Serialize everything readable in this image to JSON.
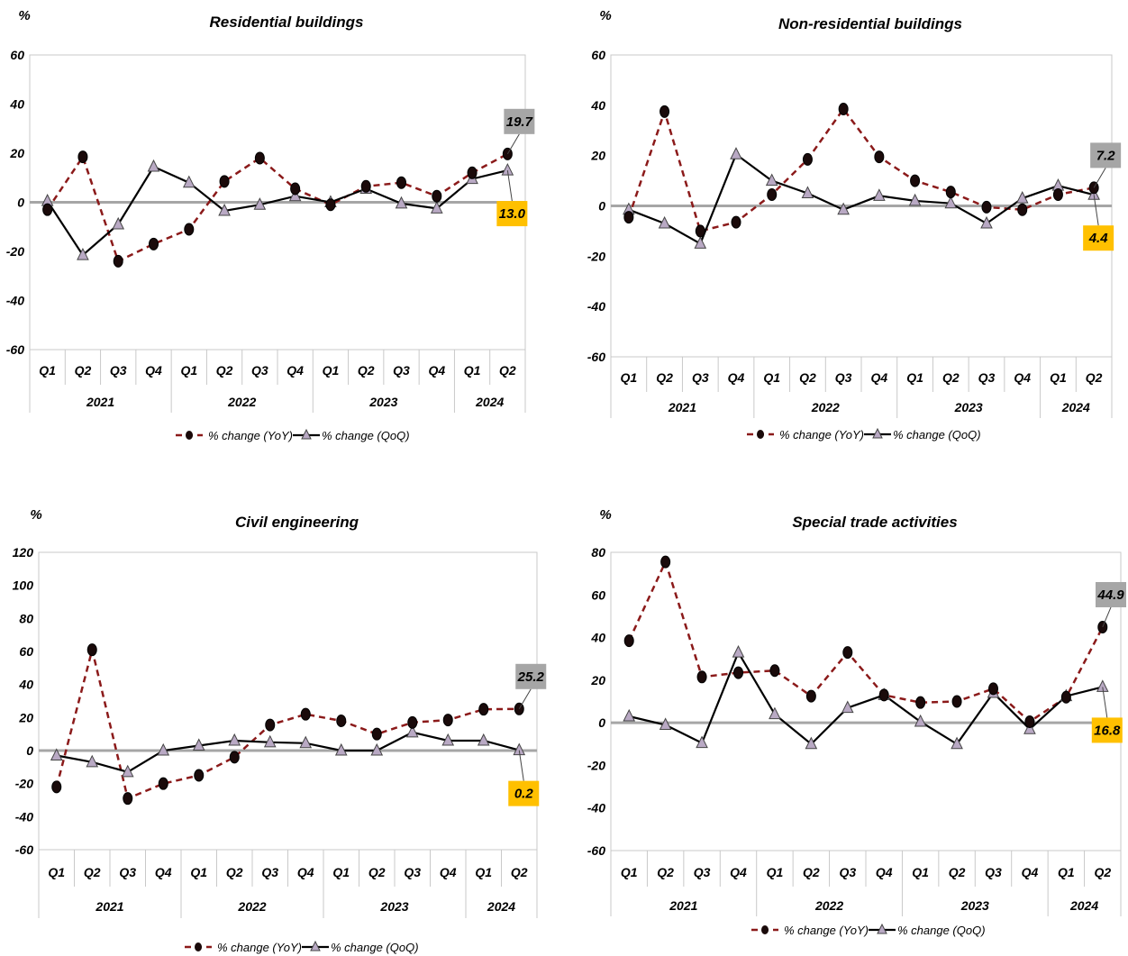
{
  "charts": [
    {
      "unit": "%",
      "chart_data": {
        "type": "line",
        "title": "Residential buildings",
        "ylabel": "%",
        "ylim": [
          -60,
          60
        ],
        "yticks": [
          -60,
          -40,
          -20,
          0,
          20,
          40,
          60
        ],
        "categories": [
          "Q1",
          "Q2",
          "Q3",
          "Q4",
          "Q1",
          "Q2",
          "Q3",
          "Q4",
          "Q1",
          "Q2",
          "Q3",
          "Q4",
          "Q1",
          "Q2"
        ],
        "year_groups": [
          {
            "label": "2021",
            "span": 4
          },
          {
            "label": "2022",
            "span": 4
          },
          {
            "label": "2023",
            "span": 4
          },
          {
            "label": "2024",
            "span": 2
          }
        ],
        "series": [
          {
            "name": "% change (YoY)",
            "style": "dashed",
            "color": "#8B1A1A",
            "marker": "circle",
            "values": [
              -3,
              18.5,
              -24,
              -17,
              -11,
              8.5,
              18,
              5.5,
              -1,
              6.5,
              8,
              2.5,
              12,
              19.7
            ]
          },
          {
            "name": "% change (QoQ)",
            "style": "solid",
            "color": "#000000",
            "marker": "triangle",
            "values": [
              0.5,
              -21.5,
              -9,
              14.5,
              8,
              -3.5,
              -1,
              2.5,
              0,
              5.5,
              -0.5,
              -2.5,
              9.5,
              13.0
            ]
          }
        ],
        "annotations": [
          {
            "text": "19.7",
            "series": 0,
            "index": 13,
            "bg": "#A6A6A6"
          },
          {
            "text": "13.0",
            "series": 1,
            "index": 13,
            "bg": "#FFC000"
          }
        ],
        "legend_position": "bottom-center",
        "grid": false
      }
    },
    {
      "unit": "%",
      "chart_data": {
        "type": "line",
        "title": "Non-residential buildings",
        "ylabel": "%",
        "ylim": [
          -60,
          60
        ],
        "yticks": [
          -60,
          -40,
          -20,
          0,
          20,
          40,
          60
        ],
        "categories": [
          "Q1",
          "Q2",
          "Q3",
          "Q4",
          "Q1",
          "Q2",
          "Q3",
          "Q4",
          "Q1",
          "Q2",
          "Q3",
          "Q4",
          "Q1",
          "Q2"
        ],
        "year_groups": [
          {
            "label": "2021",
            "span": 4
          },
          {
            "label": "2022",
            "span": 4
          },
          {
            "label": "2023",
            "span": 4
          },
          {
            "label": "2024",
            "span": 2
          }
        ],
        "series": [
          {
            "name": "% change (YoY)",
            "style": "dashed",
            "color": "#8B1A1A",
            "marker": "circle",
            "values": [
              -4.5,
              37.5,
              -10,
              -6.5,
              4.5,
              18.5,
              38.5,
              19.5,
              10,
              5.5,
              -0.5,
              -1.5,
              4.5,
              7.2
            ]
          },
          {
            "name": "% change (QoQ)",
            "style": "solid",
            "color": "#000000",
            "marker": "triangle",
            "values": [
              -1.5,
              -7,
              -15,
              20.5,
              10,
              5,
              -1.5,
              4,
              2,
              1,
              -7,
              3,
              8,
              4.4
            ]
          }
        ],
        "annotations": [
          {
            "text": "7.2",
            "series": 0,
            "index": 13,
            "bg": "#A6A6A6"
          },
          {
            "text": "4.4",
            "series": 1,
            "index": 13,
            "bg": "#FFC000"
          }
        ],
        "legend_position": "bottom-center",
        "grid": false
      }
    },
    {
      "unit": "%",
      "chart_data": {
        "type": "line",
        "title": "Civil engineering",
        "ylabel": "%",
        "ylim": [
          -60,
          120
        ],
        "yticks": [
          -60,
          -40,
          -20,
          0,
          20,
          40,
          60,
          80,
          100,
          120
        ],
        "categories": [
          "Q1",
          "Q2",
          "Q3",
          "Q4",
          "Q1",
          "Q2",
          "Q3",
          "Q4",
          "Q1",
          "Q2",
          "Q3",
          "Q4",
          "Q1",
          "Q2"
        ],
        "year_groups": [
          {
            "label": "2021",
            "span": 4
          },
          {
            "label": "2022",
            "span": 4
          },
          {
            "label": "2023",
            "span": 4
          },
          {
            "label": "2024",
            "span": 2
          }
        ],
        "series": [
          {
            "name": "% change (YoY)",
            "style": "dashed",
            "color": "#8B1A1A",
            "marker": "circle",
            "values": [
              -22,
              61,
              -29,
              -20,
              -15,
              -4,
              15.5,
              22,
              18,
              10,
              17,
              18.5,
              25,
              25.2
            ]
          },
          {
            "name": "% change (QoQ)",
            "style": "solid",
            "color": "#000000",
            "marker": "triangle",
            "values": [
              -3,
              -7,
              -13,
              0,
              3,
              6,
              5,
              4.5,
              0,
              0,
              11,
              6,
              6,
              0.2
            ]
          }
        ],
        "annotations": [
          {
            "text": "25.2",
            "series": 0,
            "index": 13,
            "bg": "#A6A6A6"
          },
          {
            "text": "0.2",
            "series": 1,
            "index": 13,
            "bg": "#FFC000"
          }
        ],
        "legend_position": "bottom-center",
        "grid": false
      }
    },
    {
      "unit": "%",
      "chart_data": {
        "type": "line",
        "title": "Special trade activities",
        "ylabel": "%",
        "ylim": [
          -60,
          80
        ],
        "yticks": [
          -60,
          -40,
          -20,
          0,
          20,
          40,
          60,
          80
        ],
        "categories": [
          "Q1",
          "Q2",
          "Q3",
          "Q4",
          "Q1",
          "Q2",
          "Q3",
          "Q4",
          "Q1",
          "Q2",
          "Q3",
          "Q4",
          "Q1",
          "Q2"
        ],
        "year_groups": [
          {
            "label": "2021",
            "span": 4
          },
          {
            "label": "2022",
            "span": 4
          },
          {
            "label": "2023",
            "span": 4
          },
          {
            "label": "2024",
            "span": 2
          }
        ],
        "series": [
          {
            "name": "% change (YoY)",
            "style": "dashed",
            "color": "#8B1A1A",
            "marker": "circle",
            "values": [
              38.5,
              75.5,
              21.5,
              23.5,
              24.5,
              12.5,
              33,
              13,
              9.5,
              10,
              16,
              0.5,
              12,
              44.9
            ]
          },
          {
            "name": "% change (QoQ)",
            "style": "solid",
            "color": "#000000",
            "marker": "triangle",
            "values": [
              3,
              -1,
              -9.5,
              33,
              4,
              -10,
              7,
              13,
              0.5,
              -10,
              14,
              -3,
              12.5,
              16.8
            ]
          }
        ],
        "annotations": [
          {
            "text": "44.9",
            "series": 0,
            "index": 13,
            "bg": "#A6A6A6"
          },
          {
            "text": "16.8",
            "series": 1,
            "index": 13,
            "bg": "#FFC000"
          }
        ],
        "legend_position": "bottom-center",
        "grid": false
      }
    }
  ]
}
